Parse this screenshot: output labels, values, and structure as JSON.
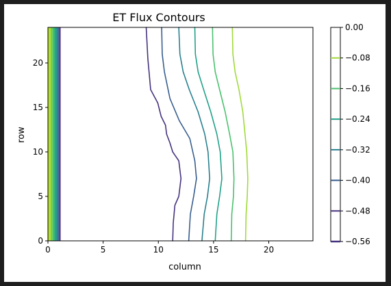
{
  "chart_data": {
    "type": "contour",
    "title": "ET Flux Contours",
    "xlabel": "column",
    "ylabel": "row",
    "xlim": [
      0,
      24
    ],
    "ylim": [
      0,
      24
    ],
    "xticks": [
      0,
      5,
      10,
      15,
      20
    ],
    "yticks": [
      0,
      5,
      10,
      15,
      20
    ],
    "grid": false,
    "colorbar": {
      "ticks": [
        "0.00",
        "−0.08",
        "−0.16",
        "−0.24",
        "−0.32",
        "−0.40",
        "−0.48",
        "−0.56"
      ],
      "range": [
        -0.56,
        0.0
      ]
    },
    "contours": [
      {
        "level": -0.48,
        "color": "#46327e",
        "points": [
          [
            8.9,
            24
          ],
          [
            9.05,
            20.5
          ],
          [
            9.3,
            17
          ],
          [
            9.95,
            15.5
          ],
          [
            10.25,
            14
          ],
          [
            10.65,
            13
          ],
          [
            10.75,
            12
          ],
          [
            11.05,
            11
          ],
          [
            11.3,
            10
          ],
          [
            11.85,
            9
          ],
          [
            12.05,
            7
          ],
          [
            11.85,
            5
          ],
          [
            11.5,
            4
          ],
          [
            11.35,
            2
          ],
          [
            11.3,
            0
          ]
        ]
      },
      {
        "level": -0.4,
        "color": "#365c8d",
        "points": [
          [
            10.3,
            24
          ],
          [
            10.35,
            21
          ],
          [
            10.55,
            19
          ],
          [
            11.05,
            16
          ],
          [
            11.9,
            13.5
          ],
          [
            12.85,
            11.5
          ],
          [
            13.3,
            9
          ],
          [
            13.45,
            7
          ],
          [
            13.2,
            5
          ],
          [
            12.9,
            3
          ],
          [
            12.75,
            0
          ]
        ]
      },
      {
        "level": -0.32,
        "color": "#277f8e",
        "points": [
          [
            11.85,
            24
          ],
          [
            11.95,
            21
          ],
          [
            12.25,
            19
          ],
          [
            12.8,
            17
          ],
          [
            13.6,
            14.5
          ],
          [
            14.2,
            12
          ],
          [
            14.5,
            10
          ],
          [
            14.65,
            7
          ],
          [
            14.45,
            5
          ],
          [
            14.15,
            3
          ],
          [
            13.95,
            0
          ]
        ]
      },
      {
        "level": -0.24,
        "color": "#1fa187",
        "points": [
          [
            13.3,
            24
          ],
          [
            13.35,
            21
          ],
          [
            13.6,
            19
          ],
          [
            14.1,
            17
          ],
          [
            14.75,
            14.5
          ],
          [
            15.3,
            12
          ],
          [
            15.6,
            10
          ],
          [
            15.75,
            7
          ],
          [
            15.55,
            5
          ],
          [
            15.3,
            3
          ],
          [
            15.15,
            0
          ]
        ]
      },
      {
        "level": -0.16,
        "color": "#4ac16d",
        "points": [
          [
            14.9,
            24
          ],
          [
            14.95,
            21
          ],
          [
            15.15,
            19
          ],
          [
            15.55,
            17
          ],
          [
            16.05,
            14.5
          ],
          [
            16.45,
            12
          ],
          [
            16.75,
            10
          ],
          [
            16.85,
            7
          ],
          [
            16.8,
            5
          ],
          [
            16.65,
            3
          ],
          [
            16.6,
            0
          ]
        ]
      },
      {
        "level": -0.08,
        "color": "#a0da39",
        "points": [
          [
            16.7,
            24
          ],
          [
            16.75,
            21
          ],
          [
            16.95,
            19
          ],
          [
            17.3,
            17
          ],
          [
            17.65,
            14.5
          ],
          [
            17.85,
            12
          ],
          [
            18.0,
            10
          ],
          [
            18.1,
            7
          ],
          [
            18.05,
            5
          ],
          [
            17.95,
            3
          ],
          [
            17.9,
            0
          ]
        ]
      }
    ],
    "edge_bands": [
      {
        "x": [
          0.0,
          0.25
        ],
        "color": "#b5de2b"
      },
      {
        "x": [
          0.25,
          0.45
        ],
        "color": "#6ece58"
      },
      {
        "x": [
          0.45,
          0.65
        ],
        "color": "#35b779"
      },
      {
        "x": [
          0.65,
          0.78
        ],
        "color": "#1f9e89"
      },
      {
        "x": [
          0.78,
          0.88
        ],
        "color": "#26828e"
      },
      {
        "x": [
          0.88,
          0.97
        ],
        "color": "#31688e"
      },
      {
        "x": [
          0.97,
          1.07
        ],
        "color": "#3e4989"
      },
      {
        "x": [
          1.07,
          1.15
        ],
        "color": "#482878"
      }
    ]
  }
}
